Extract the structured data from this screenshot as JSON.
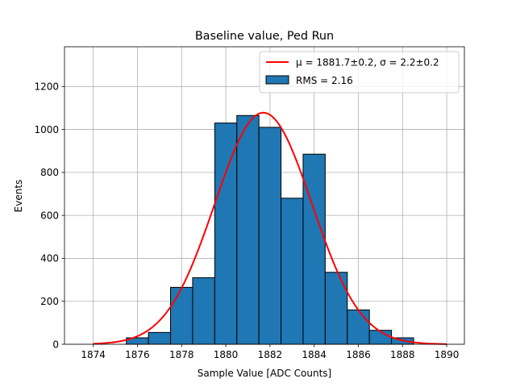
{
  "chart_data": {
    "type": "bar",
    "title": "Baseline value, Ped Run",
    "xlabel": "Sample Value [ADC Counts]",
    "ylabel": "Events",
    "xlim": [
      1872.7,
      1890.8
    ],
    "ylim": [
      0,
      1385
    ],
    "x_ticks": [
      1874,
      1876,
      1878,
      1880,
      1882,
      1884,
      1886,
      1888,
      1890
    ],
    "x_tick_labels": [
      "1874",
      "1876",
      "1878",
      "1880",
      "1882",
      "1884",
      "1886",
      "1888",
      "1890"
    ],
    "y_ticks": [
      0,
      200,
      400,
      600,
      800,
      1000,
      1200
    ],
    "y_tick_labels": [
      "0",
      "200",
      "400",
      "600",
      "800",
      "1000",
      "1200"
    ],
    "grid": true,
    "legend_position": "top-right",
    "bars": [
      {
        "x0": 1875.5,
        "x1": 1876.5,
        "value": 30
      },
      {
        "x0": 1876.5,
        "x1": 1877.5,
        "value": 55
      },
      {
        "x0": 1877.5,
        "x1": 1878.5,
        "value": 265
      },
      {
        "x0": 1878.5,
        "x1": 1879.5,
        "value": 310
      },
      {
        "x0": 1879.5,
        "x1": 1880.5,
        "value": 1030
      },
      {
        "x0": 1880.5,
        "x1": 1881.5,
        "value": 1065
      },
      {
        "x0": 1881.5,
        "x1": 1882.5,
        "value": 1010
      },
      {
        "x0": 1882.5,
        "x1": 1883.5,
        "value": 680
      },
      {
        "x0": 1883.5,
        "x1": 1884.5,
        "value": 885
      },
      {
        "x0": 1884.5,
        "x1": 1885.5,
        "value": 335
      },
      {
        "x0": 1885.5,
        "x1": 1886.5,
        "value": 160
      },
      {
        "x0": 1886.5,
        "x1": 1887.5,
        "value": 65
      },
      {
        "x0": 1887.5,
        "x1": 1888.5,
        "value": 30
      }
    ],
    "fit": {
      "function": "gaussian",
      "mu": 1881.7,
      "sigma": 2.2,
      "amplitude": 1078,
      "x_range": [
        1874,
        1890
      ]
    },
    "legend": [
      {
        "label": "μ = 1881.7±0.2, σ = 2.2±0.2",
        "kind": "line",
        "color": "#ff0000"
      },
      {
        "label": "RMS = 2.16",
        "kind": "patch",
        "color": "#1f77b4"
      }
    ],
    "colors": {
      "bar_fill": "#1f77b4",
      "bar_edge": "#000000",
      "fit_line": "#ff0000",
      "grid": "#b0b0b0"
    }
  }
}
